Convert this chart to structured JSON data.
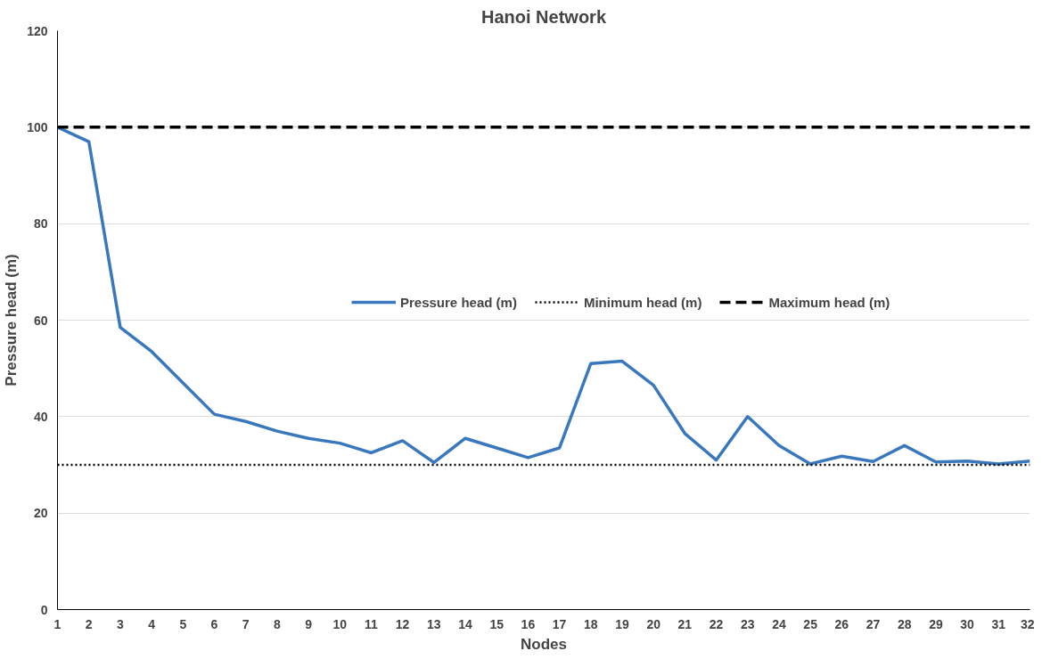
{
  "chart_data": {
    "type": "line",
    "title": "Hanoi Network",
    "xlabel": "Nodes",
    "ylabel": "Pressure head (m)",
    "x": [
      1,
      2,
      3,
      4,
      5,
      6,
      7,
      8,
      9,
      10,
      11,
      12,
      13,
      14,
      15,
      16,
      17,
      18,
      19,
      20,
      21,
      22,
      23,
      24,
      25,
      26,
      27,
      28,
      29,
      30,
      31,
      32
    ],
    "series": [
      {
        "name": "Pressure head (m)",
        "color": "#3a78bd",
        "values": [
          100,
          97,
          58.5,
          53.5,
          47,
          40.5,
          39,
          37,
          35.5,
          34.5,
          32.5,
          35,
          30.5,
          35.5,
          33.5,
          31.5,
          33.5,
          51,
          51.5,
          46.5,
          36.5,
          31,
          40,
          34,
          30.2,
          31.8,
          30.7,
          34,
          30.6,
          30.8,
          30.2,
          30.8
        ]
      }
    ],
    "ref_lines": [
      {
        "axis": "y",
        "value": 30,
        "label": "Minimum head (m)",
        "color": "#000000",
        "line_style": "dotted"
      },
      {
        "axis": "y",
        "value": 100,
        "label": "Maximum head (m)",
        "color": "#000000",
        "line_style": "dashed"
      }
    ],
    "xlim": [
      1,
      32
    ],
    "xticks": [
      1,
      2,
      3,
      4,
      5,
      6,
      7,
      8,
      9,
      10,
      11,
      12,
      13,
      14,
      15,
      16,
      17,
      18,
      19,
      20,
      21,
      22,
      23,
      24,
      25,
      26,
      27,
      28,
      29,
      30,
      31,
      32
    ],
    "ylim": [
      0,
      120
    ],
    "yticks": [
      0,
      20,
      40,
      60,
      80,
      100,
      120
    ],
    "grid": "y",
    "legend": "right",
    "line_style": "solid",
    "marker": "none"
  }
}
